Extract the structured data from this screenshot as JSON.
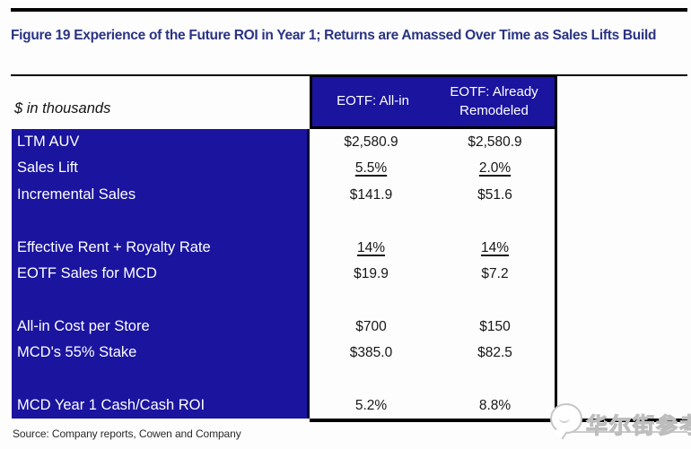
{
  "title": "Figure 19 Experience of the Future ROI in Year 1; Returns are Amassed Over Time as Sales Lifts Build",
  "table": {
    "unit_label": "$ in thousands",
    "columns": [
      "EOTF: All-in",
      "EOTF: Already Remodeled"
    ],
    "rows": [
      {
        "label": "LTM AUV",
        "values": [
          "$2,580.9",
          "$2,580.9"
        ],
        "underline": false
      },
      {
        "label": "Sales Lift",
        "values": [
          "5.5%",
          "2.0%"
        ],
        "underline": true
      },
      {
        "label": "Incremental Sales",
        "values": [
          "$141.9",
          "$51.6"
        ],
        "underline": false
      },
      {
        "label": "",
        "values": [
          "",
          ""
        ],
        "underline": false
      },
      {
        "label": "Effective Rent + Royalty Rate",
        "values": [
          "14%",
          "14%"
        ],
        "underline": true
      },
      {
        "label": "EOTF Sales for MCD",
        "values": [
          "$19.9",
          "$7.2"
        ],
        "underline": false
      },
      {
        "label": "",
        "values": [
          "",
          ""
        ],
        "underline": false
      },
      {
        "label": "All-in Cost per Store",
        "values": [
          "$700",
          "$150"
        ],
        "underline": false
      },
      {
        "label": "MCD's 55% Stake",
        "values": [
          "$385.0",
          "$82.5"
        ],
        "underline": false
      },
      {
        "label": "",
        "values": [
          "",
          ""
        ],
        "underline": false
      },
      {
        "label": "MCD Year 1 Cash/Cash ROI",
        "values": [
          "5.2%",
          "8.8%"
        ],
        "underline": false
      }
    ]
  },
  "source": "Source: Company reports, Cowen and Company",
  "watermark": {
    "text": "华尔街参考"
  },
  "colors": {
    "table_blue": "#1a149f",
    "title_navy": "#2a3382",
    "border_black": "#000000",
    "watermark_gray": "#c6c6c6"
  }
}
